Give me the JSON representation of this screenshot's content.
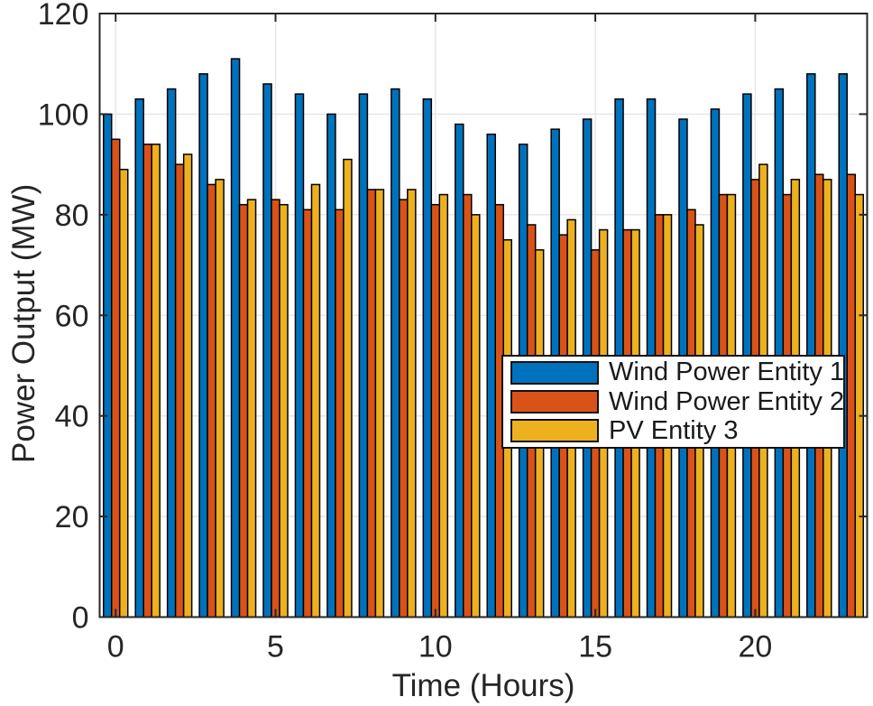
{
  "chart_data": {
    "type": "bar",
    "title": "",
    "xlabel": "Time (Hours)",
    "ylabel": "Power Output (MW)",
    "x": [
      0,
      1,
      2,
      3,
      4,
      5,
      6,
      7,
      8,
      9,
      10,
      11,
      12,
      13,
      14,
      15,
      16,
      17,
      18,
      19,
      20,
      21,
      22,
      23
    ],
    "series": [
      {
        "name": "Wind Power Entity 1",
        "color": "#0072BD",
        "values": [
          100,
          103,
          105,
          108,
          111,
          106,
          104,
          100,
          104,
          105,
          103,
          98,
          96,
          94,
          97,
          99,
          103,
          103,
          99,
          101,
          104,
          105,
          108,
          108
        ]
      },
      {
        "name": "Wind Power Entity 2",
        "color": "#D95319",
        "values": [
          95,
          94,
          90,
          86,
          82,
          83,
          81,
          81,
          85,
          83,
          82,
          84,
          82,
          78,
          76,
          73,
          77,
          80,
          81,
          84,
          87,
          84,
          88,
          88
        ]
      },
      {
        "name": "PV Entity 3",
        "color": "#EDB120",
        "values": [
          89,
          94,
          92,
          87,
          83,
          82,
          86,
          91,
          85,
          85,
          84,
          80,
          75,
          73,
          79,
          77,
          77,
          80,
          78,
          84,
          90,
          87,
          87,
          84
        ]
      }
    ],
    "ylim": [
      0,
      120
    ],
    "yticks": [
      0,
      20,
      40,
      60,
      80,
      100,
      120
    ],
    "xticks": [
      0,
      5,
      10,
      15,
      20
    ],
    "grid": true,
    "legend_position": "middle-right",
    "bar_edge_color": "#000000",
    "axis_color": "#262626",
    "grid_color": "#e4e4e4",
    "background": "#ffffff"
  }
}
